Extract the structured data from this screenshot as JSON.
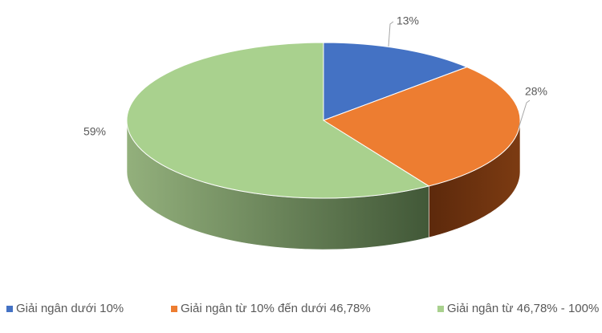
{
  "chart_data": {
    "type": "pie",
    "categories": [
      "Giải ngân dưới 10%",
      "Giải ngân từ 10% đến dưới 46,78%",
      "Giải ngân từ 46,78% - 100%"
    ],
    "values": [
      13,
      28,
      59
    ],
    "value_labels": [
      "13%",
      "28%",
      "59%"
    ],
    "colors": [
      "#4472c4",
      "#ed7d31",
      "#a9d18e"
    ],
    "legend": "bottom"
  }
}
